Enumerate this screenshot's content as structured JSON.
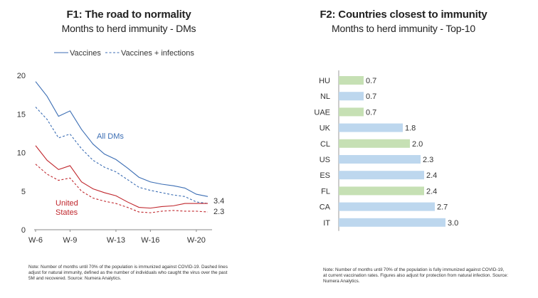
{
  "left": {
    "title": "F1: The road to normality",
    "subtitle": "Months to herd immunity - DMs",
    "note": "Note: Number of months until 70% of the population is immunized against COVID-19. Dashed lines adjust for natural immunity, defined as the number of individuals who caught the virus over the past 5M and recovered. Source: Numera Analytics."
  },
  "right": {
    "title": "F2: Countries closest to immunity",
    "subtitle": "Months to herd immunity - Top-10",
    "note": "Note: Number of months until 70% of the population is fully immunized against COVID-19, at current vaccination rates. Figures also adjust for protection from natural infection. Source: Numera Analytics."
  },
  "chart_data": [
    {
      "type": "line",
      "title": "F1: The road to normality",
      "subtitle": "Months to herd immunity - DMs",
      "legend": {
        "placement": "top",
        "entries": [
          "Vaccines",
          "Vaccines + infections"
        ]
      },
      "x": [
        6,
        7,
        8,
        9,
        10,
        11,
        12,
        13,
        14,
        15,
        16,
        17,
        18,
        19,
        20,
        21
      ],
      "x_tick_labels": [
        "W-6",
        "W-9",
        "W-13",
        "W-16",
        "W-20"
      ],
      "x_tick_values": [
        6,
        9,
        13,
        16,
        20
      ],
      "ylim": [
        0,
        20
      ],
      "y_ticks": [
        0,
        5,
        10,
        15,
        20
      ],
      "grid": false,
      "annotations": {
        "all_dms": "All DMs",
        "us_line1": "United",
        "us_line2": "States",
        "end_top": "3.4",
        "end_bottom": "2.3"
      },
      "series": [
        {
          "name": "Vaccines",
          "group": "All DMs",
          "style": "solid",
          "color": "#3c6eb4",
          "values": [
            19.2,
            17.3,
            14.7,
            15.4,
            13.0,
            11.1,
            9.8,
            9.1,
            8.0,
            6.8,
            6.2,
            5.9,
            5.7,
            5.4,
            4.6,
            4.3
          ]
        },
        {
          "name": "Vaccines + infections",
          "group": "All DMs",
          "style": "dashed",
          "color": "#3c6eb4",
          "values": [
            15.9,
            14.3,
            11.9,
            12.4,
            10.5,
            9.0,
            8.1,
            7.5,
            6.5,
            5.5,
            5.1,
            4.8,
            4.5,
            4.3,
            3.6,
            3.4
          ]
        },
        {
          "name": "Vaccines",
          "group": "United States",
          "style": "solid",
          "color": "#c0272d",
          "values": [
            10.9,
            9.0,
            7.8,
            8.3,
            6.2,
            5.3,
            4.8,
            4.4,
            3.6,
            2.9,
            2.8,
            3.0,
            3.1,
            3.4,
            3.4,
            3.4
          ]
        },
        {
          "name": "Vaccines + infections",
          "group": "United States",
          "style": "dashed",
          "color": "#c0272d",
          "values": [
            8.5,
            7.2,
            6.4,
            6.7,
            5.0,
            4.1,
            3.7,
            3.4,
            2.9,
            2.3,
            2.2,
            2.4,
            2.5,
            2.4,
            2.4,
            2.3
          ]
        }
      ]
    },
    {
      "type": "bar",
      "orientation": "horizontal",
      "title": "F2: Countries closest to immunity",
      "subtitle": "Months to herd immunity - Top-10",
      "categories": [
        "HU",
        "NL",
        "UAE",
        "UK",
        "CL",
        "US",
        "ES",
        "FL",
        "CA",
        "IT"
      ],
      "values": [
        0.7,
        0.7,
        0.7,
        1.8,
        2.0,
        2.3,
        2.4,
        2.4,
        2.7,
        3.0
      ],
      "value_labels": [
        "0.7",
        "0.7",
        "0.7",
        "1.8",
        "2.0",
        "2.3",
        "2.4",
        "2.4",
        "2.7",
        "3.0"
      ],
      "colors": [
        "#c6e0b4",
        "#bdd7ee",
        "#c6e0b4",
        "#bdd7ee",
        "#c6e0b4",
        "#bdd7ee",
        "#bdd7ee",
        "#c6e0b4",
        "#bdd7ee",
        "#bdd7ee"
      ],
      "xlim": [
        0,
        3.6
      ],
      "grid": false
    }
  ]
}
